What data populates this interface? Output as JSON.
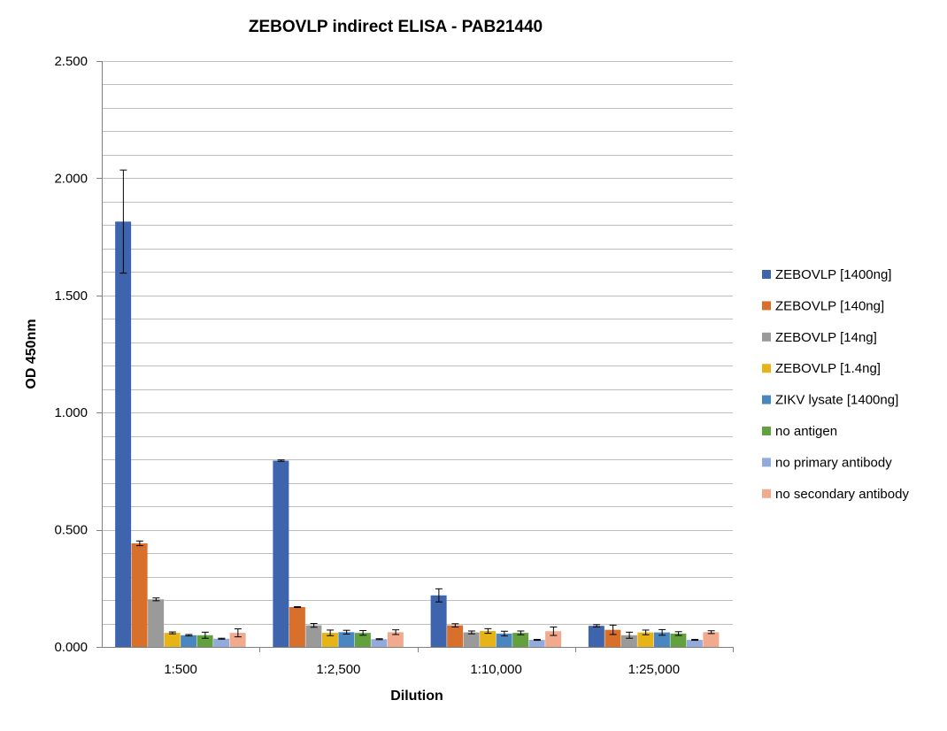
{
  "chart_data": {
    "type": "bar",
    "title": "ZEBOVLP indirect ELISA - PAB21440",
    "xlabel": "Dilution",
    "ylabel": "OD 450nm",
    "ylim": [
      0,
      2.5
    ],
    "yticks": [
      "0.000",
      "0.500",
      "1.000",
      "1.500",
      "2.000",
      "2.500"
    ],
    "grid": true,
    "legend_position": "right",
    "categories": [
      "1:500",
      "1:2,500",
      "1:10,000",
      "1:25,000"
    ],
    "series": [
      {
        "name": "ZEBOVLP [1400ng]",
        "color": "#3E64AE",
        "values": [
          1.815,
          0.795,
          0.22,
          0.09
        ],
        "errors": [
          0.22,
          0.003,
          0.028,
          0.005
        ]
      },
      {
        "name": "ZEBOVLP [140ng]",
        "color": "#D8702C",
        "values": [
          0.442,
          0.17,
          0.092,
          0.073
        ],
        "errors": [
          0.01,
          0.002,
          0.007,
          0.02
        ]
      },
      {
        "name": "ZEBOVLP [14ng]",
        "color": "#9A9A9A",
        "values": [
          0.203,
          0.092,
          0.062,
          0.05
        ],
        "errors": [
          0.006,
          0.008,
          0.006,
          0.013
        ]
      },
      {
        "name": "ZEBOVLP [1.4ng]",
        "color": "#E6B416",
        "values": [
          0.06,
          0.06,
          0.068,
          0.062
        ],
        "errors": [
          0.004,
          0.012,
          0.01,
          0.01
        ]
      },
      {
        "name": "ZIKV lysate [1400ng]",
        "color": "#4A86C0",
        "values": [
          0.05,
          0.063,
          0.057,
          0.062
        ],
        "errors": [
          0.003,
          0.008,
          0.01,
          0.012
        ]
      },
      {
        "name": "no antigen",
        "color": "#63A03E",
        "values": [
          0.05,
          0.06,
          0.06,
          0.057
        ],
        "errors": [
          0.013,
          0.01,
          0.008,
          0.008
        ]
      },
      {
        "name": "no primary antibody",
        "color": "#93AADC",
        "values": [
          0.035,
          0.033,
          0.03,
          0.03
        ],
        "errors": [
          0.002,
          0.002,
          0.002,
          0.002
        ]
      },
      {
        "name": "no secondary antibody",
        "color": "#F2AA8E",
        "values": [
          0.06,
          0.063,
          0.067,
          0.063
        ],
        "errors": [
          0.017,
          0.01,
          0.018,
          0.006
        ]
      }
    ]
  }
}
